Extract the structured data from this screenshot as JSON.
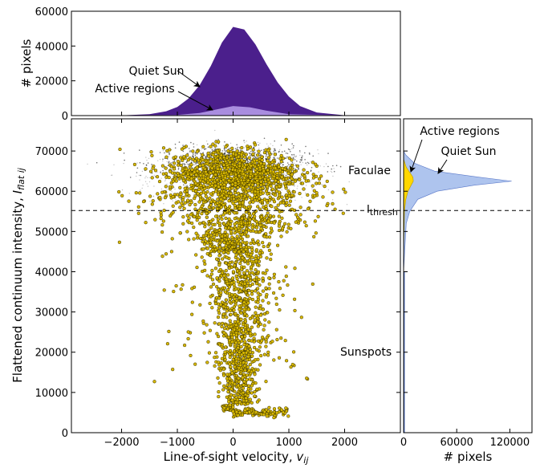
{
  "chart_data": [
    {
      "panel": "top-histogram",
      "type": "area",
      "ylabel": "# pixels",
      "xlim": [
        -2900,
        3000
      ],
      "ylim": [
        0,
        60000
      ],
      "yticks": [
        "0",
        "20000",
        "40000",
        "60000"
      ],
      "series": [
        {
          "name": "Quiet Sun",
          "color": "#4b1f8c",
          "x": [
            -2700,
            -2000,
            -1500,
            -1200,
            -1000,
            -800,
            -600,
            -400,
            -200,
            0,
            200,
            400,
            600,
            800,
            1000,
            1200,
            1500,
            2000,
            2300
          ],
          "values": [
            0,
            100,
            800,
            2500,
            5000,
            9800,
            17500,
            28500,
            42000,
            51000,
            49500,
            41000,
            29500,
            19000,
            11000,
            5500,
            1800,
            200,
            0
          ]
        },
        {
          "name": "Active regions",
          "color": "#a98ddf",
          "x": [
            -2700,
            -1000,
            -600,
            -300,
            0,
            300,
            600,
            1000,
            2300
          ],
          "values": [
            0,
            400,
            1500,
            3500,
            5500,
            4800,
            2800,
            800,
            0
          ]
        }
      ],
      "annotations": [
        "Quiet Sun",
        "Active regions"
      ]
    },
    {
      "panel": "main-scatter",
      "type": "scatter",
      "xlabel": "Line-of-sight velocity, v_ij",
      "xlabel_main": "Line-of-sight velocity, ",
      "xlabel_var": "v",
      "xlabel_sub": "ij",
      "ylabel_main": "Flattened continuum intensity, ",
      "ylabel_var": "I",
      "ylabel_sub": "flat ij",
      "xlim": [
        -2900,
        3000
      ],
      "ylim": [
        0,
        78000
      ],
      "xticks": [
        "−2000",
        "−1000",
        "0",
        "1000",
        "2000"
      ],
      "yticks": [
        "0",
        "10000",
        "20000",
        "30000",
        "40000",
        "50000",
        "60000",
        "70000"
      ],
      "threshold": 55200,
      "threshold_label_main": "I",
      "threshold_label_sub": "thresh",
      "region_labels": [
        "Faculae",
        "Sunspots"
      ],
      "series": [
        {
          "name": "Quiet Sun",
          "color": "#9a9a9a"
        },
        {
          "name": "Active regions",
          "color": "#e6c000"
        }
      ]
    },
    {
      "panel": "side-histogram",
      "type": "area",
      "xlabel": "# pixels",
      "xlim": [
        0,
        145000
      ],
      "xticks": [
        "0",
        "60000",
        "120000"
      ],
      "series": [
        {
          "name": "Quiet Sun",
          "color": "#aec4ee",
          "y": [
            40000,
            52000,
            55000,
            58000,
            60000,
            61500,
            62500,
            63500,
            65000,
            67000,
            69000,
            70000
          ],
          "values": [
            0,
            3000,
            7000,
            16000,
            38000,
            80000,
            122000,
            85000,
            35000,
            12000,
            2500,
            0
          ]
        },
        {
          "name": "Active regions",
          "color": "#ffd700",
          "y": [
            45000,
            55000,
            58000,
            60000,
            61500,
            62500,
            63500,
            64500,
            66000,
            68000
          ],
          "values": [
            0,
            1000,
            2500,
            5000,
            8500,
            11000,
            10500,
            7500,
            3000,
            0
          ]
        }
      ],
      "annotations": [
        "Active regions",
        "Quiet Sun"
      ]
    }
  ]
}
